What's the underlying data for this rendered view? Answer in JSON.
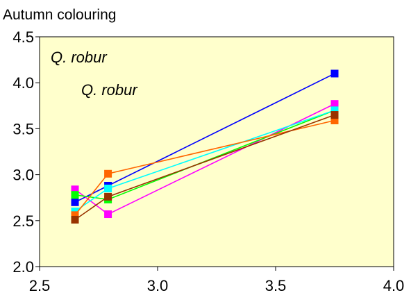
{
  "chart_data": {
    "type": "line",
    "title": "",
    "xlabel": "",
    "ylabel": "Autumn colouring",
    "xlim": [
      2.5,
      4.0
    ],
    "ylim": [
      2.0,
      4.5
    ],
    "xticks": [
      "2.5",
      "3.0",
      "3.5",
      "4.0"
    ],
    "yticks": [
      "2.0",
      "2.5",
      "3.0",
      "3.5",
      "4.0",
      "4.5"
    ],
    "grid": false,
    "background": "#ffffcc",
    "annotations": [
      "Q. robur",
      "Q. robur"
    ],
    "series": [
      {
        "color": "#0000ff",
        "x": [
          2.65,
          2.79,
          3.75
        ],
        "y": [
          2.7,
          2.88,
          4.1
        ]
      },
      {
        "color": "#ff00ff",
        "x": [
          2.65,
          2.79,
          3.75
        ],
        "y": [
          2.84,
          2.57,
          3.77
        ]
      },
      {
        "color": "#00ff00",
        "x": [
          2.65,
          2.79,
          3.75
        ],
        "y": [
          2.78,
          2.73,
          3.7
        ]
      },
      {
        "color": "#00ffff",
        "x": [
          2.65,
          2.79,
          3.75
        ],
        "y": [
          2.6,
          2.85,
          3.7
        ]
      },
      {
        "color": "#ff6600",
        "x": [
          2.65,
          2.79,
          3.75
        ],
        "y": [
          2.56,
          3.01,
          3.59
        ]
      },
      {
        "color": "#993300",
        "x": [
          2.65,
          2.79,
          3.75
        ],
        "y": [
          2.51,
          2.76,
          3.65
        ]
      }
    ]
  }
}
